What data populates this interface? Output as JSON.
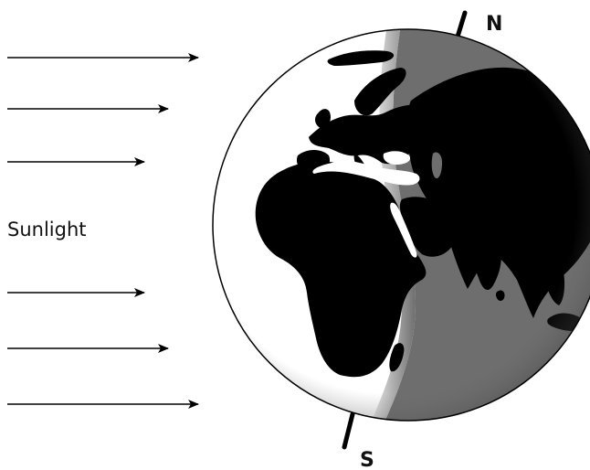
{
  "diagram": {
    "sunlight_label": "Sunlight",
    "north_label": "N",
    "south_label": "S",
    "colors": {
      "land": "#000000",
      "day_ocean": "#ffffff",
      "night_ocean": "#6e6e6e",
      "night_land": "#000000",
      "outline": "#000000",
      "ray": "#000000"
    },
    "icons": {
      "ray": "arrow-right-icon",
      "globe": "earth-icon"
    }
  }
}
